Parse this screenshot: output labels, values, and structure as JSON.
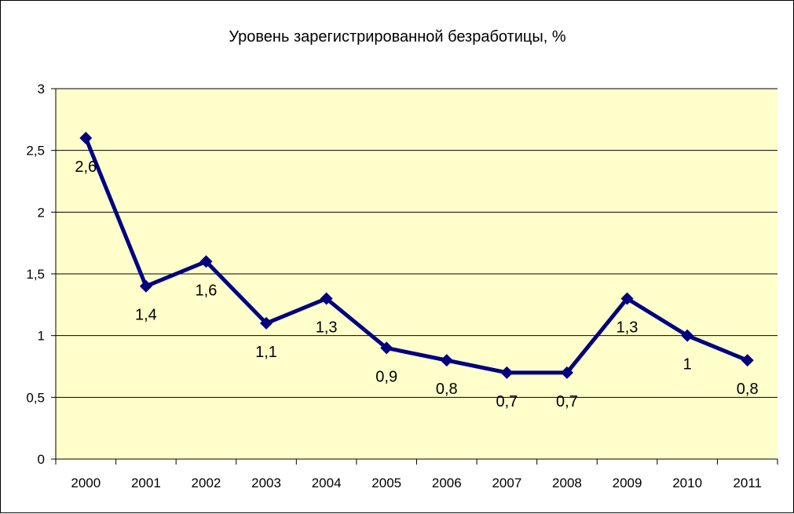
{
  "chart_data": {
    "type": "line",
    "title": "Уровень зарегистрированной  безработицы, %",
    "categories": [
      "2000",
      "2001",
      "2002",
      "2003",
      "2004",
      "2005",
      "2006",
      "2007",
      "2008",
      "2009",
      "2010",
      "2011"
    ],
    "series": [
      {
        "values": [
          2.6,
          1.4,
          1.6,
          1.1,
          1.3,
          0.9,
          0.8,
          0.7,
          0.7,
          1.3,
          1.0,
          0.8
        ],
        "labels": [
          "2,6",
          "1,4",
          "1,6",
          "1,1",
          "1,3",
          "0,9",
          "0,8",
          "0,7",
          "0,7",
          "1,3",
          "1",
          "0,8"
        ]
      }
    ],
    "yticks": [
      0,
      0.5,
      1,
      1.5,
      2,
      2.5,
      3
    ],
    "ytick_labels": [
      "0",
      "0,5",
      "1",
      "1,5",
      "2",
      "2,5",
      "3"
    ],
    "ylim": [
      0,
      3
    ],
    "grid": true,
    "colors": {
      "line": "#000080",
      "plot_bg": "#FFFFCC",
      "grid": "#000000"
    }
  }
}
